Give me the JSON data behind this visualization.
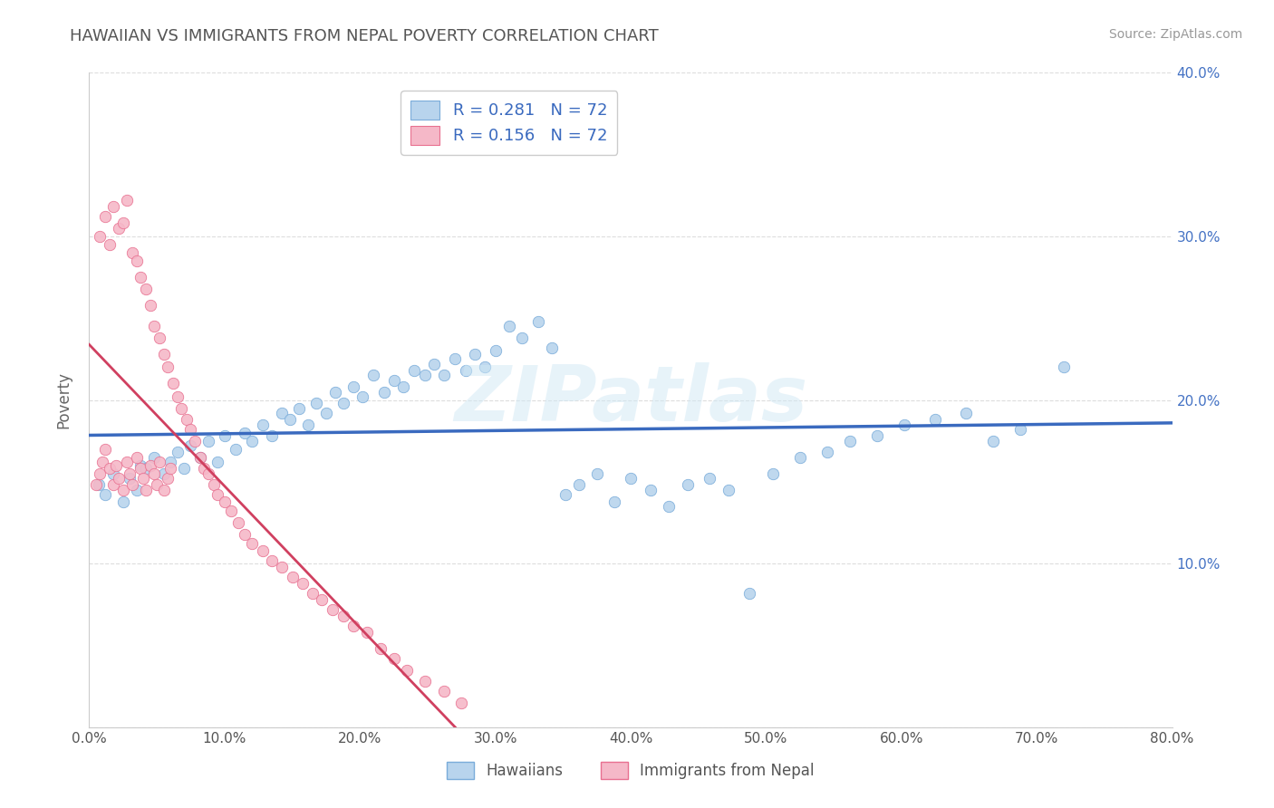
{
  "title": "HAWAIIAN VS IMMIGRANTS FROM NEPAL POVERTY CORRELATION CHART",
  "source": "Source: ZipAtlas.com",
  "ylabel": "Poverty",
  "xlim": [
    0.0,
    0.8
  ],
  "ylim": [
    0.0,
    0.4
  ],
  "xtick_vals": [
    0.0,
    0.1,
    0.2,
    0.3,
    0.4,
    0.5,
    0.6,
    0.7,
    0.8
  ],
  "ytick_vals": [
    0.0,
    0.1,
    0.2,
    0.3,
    0.4
  ],
  "legend_r1": "R = 0.281",
  "legend_n1": "N = 72",
  "legend_r2": "R = 0.156",
  "legend_n2": "N = 72",
  "color_hawaiian_fill": "#b8d4ed",
  "color_hawaiian_edge": "#7aacda",
  "color_nepal_fill": "#f5b8c8",
  "color_nepal_edge": "#e87090",
  "line_color_hawaiian": "#3a6abf",
  "line_color_nepal": "#d04060",
  "dashed_line_color": "#cccccc",
  "title_color": "#555555",
  "source_color": "#999999",
  "ytick_color": "#4472c4",
  "xtick_color": "#555555",
  "watermark_text": "ZIPatlas",
  "watermark_color": "#d0e8f5",
  "legend_text_color": "#3a6abf",
  "legend_label_color": "#555555",
  "seed": 123,
  "hawaiians_x": [
    0.007,
    0.012,
    0.018,
    0.025,
    0.03,
    0.035,
    0.038,
    0.042,
    0.048,
    0.055,
    0.06,
    0.065,
    0.07,
    0.075,
    0.082,
    0.088,
    0.095,
    0.1,
    0.108,
    0.115,
    0.12,
    0.128,
    0.135,
    0.142,
    0.148,
    0.155,
    0.162,
    0.168,
    0.175,
    0.182,
    0.188,
    0.195,
    0.202,
    0.21,
    0.218,
    0.225,
    0.232,
    0.24,
    0.248,
    0.255,
    0.262,
    0.27,
    0.278,
    0.285,
    0.292,
    0.3,
    0.31,
    0.32,
    0.332,
    0.342,
    0.352,
    0.362,
    0.375,
    0.388,
    0.4,
    0.415,
    0.428,
    0.442,
    0.458,
    0.472,
    0.488,
    0.505,
    0.525,
    0.545,
    0.562,
    0.582,
    0.602,
    0.625,
    0.648,
    0.668,
    0.688,
    0.72
  ],
  "hawaiians_y": [
    0.148,
    0.142,
    0.155,
    0.138,
    0.152,
    0.145,
    0.16,
    0.158,
    0.165,
    0.155,
    0.162,
    0.168,
    0.158,
    0.172,
    0.165,
    0.175,
    0.162,
    0.178,
    0.17,
    0.18,
    0.175,
    0.185,
    0.178,
    0.192,
    0.188,
    0.195,
    0.185,
    0.198,
    0.192,
    0.205,
    0.198,
    0.208,
    0.202,
    0.215,
    0.205,
    0.212,
    0.208,
    0.218,
    0.215,
    0.222,
    0.215,
    0.225,
    0.218,
    0.228,
    0.22,
    0.23,
    0.245,
    0.238,
    0.248,
    0.232,
    0.142,
    0.148,
    0.155,
    0.138,
    0.152,
    0.145,
    0.135,
    0.148,
    0.152,
    0.145,
    0.082,
    0.155,
    0.165,
    0.168,
    0.175,
    0.178,
    0.185,
    0.188,
    0.192,
    0.175,
    0.182,
    0.22
  ],
  "nepal_x": [
    0.005,
    0.008,
    0.01,
    0.012,
    0.015,
    0.018,
    0.02,
    0.022,
    0.025,
    0.028,
    0.03,
    0.032,
    0.035,
    0.038,
    0.04,
    0.042,
    0.045,
    0.048,
    0.05,
    0.052,
    0.055,
    0.058,
    0.06,
    0.008,
    0.012,
    0.015,
    0.018,
    0.022,
    0.025,
    0.028,
    0.032,
    0.035,
    0.038,
    0.042,
    0.045,
    0.048,
    0.052,
    0.055,
    0.058,
    0.062,
    0.065,
    0.068,
    0.072,
    0.075,
    0.078,
    0.082,
    0.085,
    0.088,
    0.092,
    0.095,
    0.1,
    0.105,
    0.11,
    0.115,
    0.12,
    0.128,
    0.135,
    0.142,
    0.15,
    0.158,
    0.165,
    0.172,
    0.18,
    0.188,
    0.195,
    0.205,
    0.215,
    0.225,
    0.235,
    0.248,
    0.262,
    0.275
  ],
  "nepal_y": [
    0.148,
    0.155,
    0.162,
    0.17,
    0.158,
    0.148,
    0.16,
    0.152,
    0.145,
    0.162,
    0.155,
    0.148,
    0.165,
    0.158,
    0.152,
    0.145,
    0.16,
    0.155,
    0.148,
    0.162,
    0.145,
    0.152,
    0.158,
    0.3,
    0.312,
    0.295,
    0.318,
    0.305,
    0.308,
    0.322,
    0.29,
    0.285,
    0.275,
    0.268,
    0.258,
    0.245,
    0.238,
    0.228,
    0.22,
    0.21,
    0.202,
    0.195,
    0.188,
    0.182,
    0.175,
    0.165,
    0.158,
    0.155,
    0.148,
    0.142,
    0.138,
    0.132,
    0.125,
    0.118,
    0.112,
    0.108,
    0.102,
    0.098,
    0.092,
    0.088,
    0.082,
    0.078,
    0.072,
    0.068,
    0.062,
    0.058,
    0.048,
    0.042,
    0.035,
    0.028,
    0.022,
    0.015
  ]
}
